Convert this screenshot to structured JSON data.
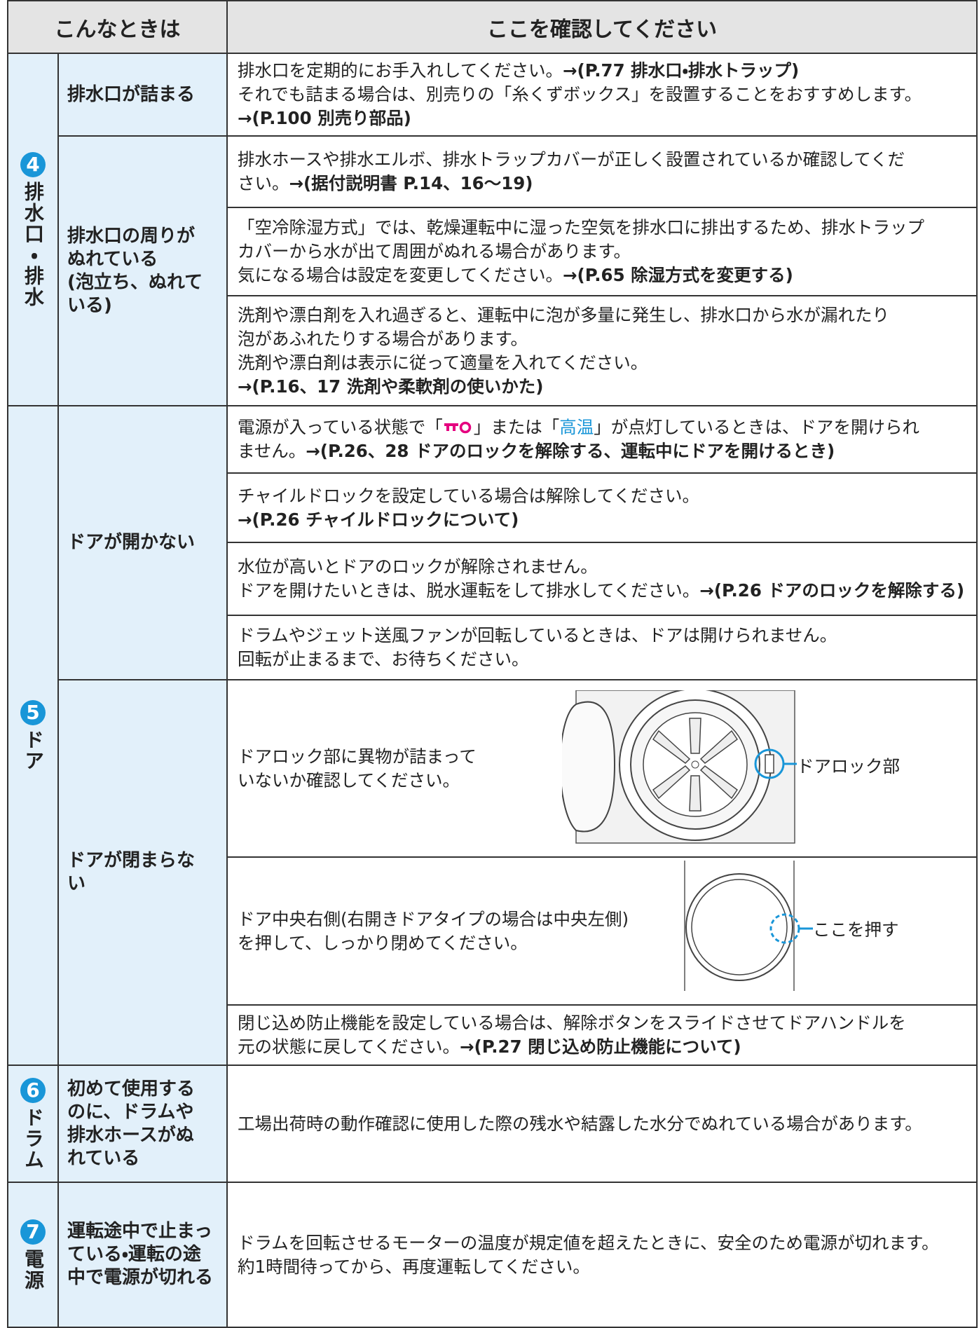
{
  "header": {
    "condition": "こんなときは",
    "check": "ここを確認してください"
  },
  "sections": [
    {
      "number": "4",
      "category": "排水口・排水",
      "rows": [
        {
          "condition": [
            "排水口が詰まる"
          ],
          "items": [
            {
              "texts": [
                "排水口を定期的にお手入れしてください。",
                "→(P.77 排水口・排水トラップ)",
                "それでも詰まる場合は、別売りの「糸くずボックス」を設置することをおすすめします。",
                "→(P.100 別売り部品)"
              ]
            }
          ]
        },
        {
          "condition": [
            "排水口の周りが",
            "ぬれている",
            "(泡立ち、ぬれて",
            "いる)"
          ],
          "items": [
            {
              "texts": [
                "排水ホースや排水エルボ、排水トラップカバーが正しく設置されているか確認してくだ",
                "さい。",
                "→(据付説明書 P.14、16～19)"
              ]
            },
            {
              "texts": [
                "「空冷除湿方式」では、乾燥運転中に湿った空気を排水口に排出するため、排水トラップ",
                "カバーから水が出て周囲がぬれる場合があります。",
                "気になる場合は設定を変更してください。",
                "→(P.65 除湿方式を変更する)"
              ]
            },
            {
              "texts": [
                "洗剤や漂白剤を入れ過ぎると、運転中に泡が多量に発生し、排水口から水が漏れたり",
                "泡があふれたりする場合があります。",
                "洗剤や漂白剤は表示に従って適量を入れてください。",
                "→(P.16、17 洗剤や柔軟剤の使いかた)"
              ]
            }
          ]
        }
      ]
    },
    {
      "number": "5",
      "category": "ドア",
      "rows": [
        {
          "condition": [
            "ドアが開かない"
          ],
          "items": [
            {
              "texts": [
                "電源が入っている状態で「",
                "」または「",
                "高温",
                "」が点灯しているときは、ドアを開けられ",
                "ません。",
                "→(P.26、28 ドアのロックを解除する、運転中にドアを開けるとき)"
              ]
            },
            {
              "texts": [
                "チャイルドロックを設定している場合は解除してください。",
                "→(P.26 チャイルドロックについて)"
              ]
            },
            {
              "texts": [
                "水位が高いとドアのロックが解除されません。",
                "ドアを開けたいときは、脱水運転をして排水してください。",
                "→(P.26 ドアのロックを解除する)"
              ]
            },
            {
              "texts": [
                "ドラムやジェット送風ファンが回転しているときは、ドアは開けられません。",
                "回転が止まるまで、お待ちください。"
              ]
            }
          ]
        },
        {
          "condition": [
            "ドアが閉まらな",
            "い"
          ],
          "items": [
            {
              "texts": [
                "ドアロック部に異物が詰まって",
                "いないか確認してください。"
              ],
              "callout": "ドアロック部"
            },
            {
              "texts": [
                "ドア中央右側(右開きドアタイプの場合は中央左側)",
                "を押して、しっかり閉めてください。"
              ],
              "callout": "ここを押す"
            },
            {
              "texts": [
                "閉じ込め防止機能を設定している場合は、解除ボタンをスライドさせてドアハンドルを",
                "元の状態に戻してください。",
                "→(P.27 閉じ込め防止機能について)"
              ]
            }
          ]
        }
      ]
    },
    {
      "number": "6",
      "category": "ドラム",
      "rows": [
        {
          "condition": [
            "初めて使用する",
            "のに、ドラムや",
            "排水ホースがぬ",
            "れている"
          ],
          "items": [
            {
              "texts": [
                "工場出荷時の動作確認に使用した際の残水や結露した水分でぬれている場合があります。"
              ]
            }
          ]
        }
      ]
    },
    {
      "number": "7",
      "category": "電源",
      "rows": [
        {
          "condition": [
            "運転途中で止まっ",
            "ている・運転の途",
            "中で電源が切れる"
          ],
          "items": [
            {
              "texts": [
                "ドラムを回転させるモーターの温度が規定値を超えたときに、安全のため電源が切れます。",
                "約1時間待ってから、再度運転してください。"
              ]
            }
          ]
        }
      ]
    }
  ]
}
